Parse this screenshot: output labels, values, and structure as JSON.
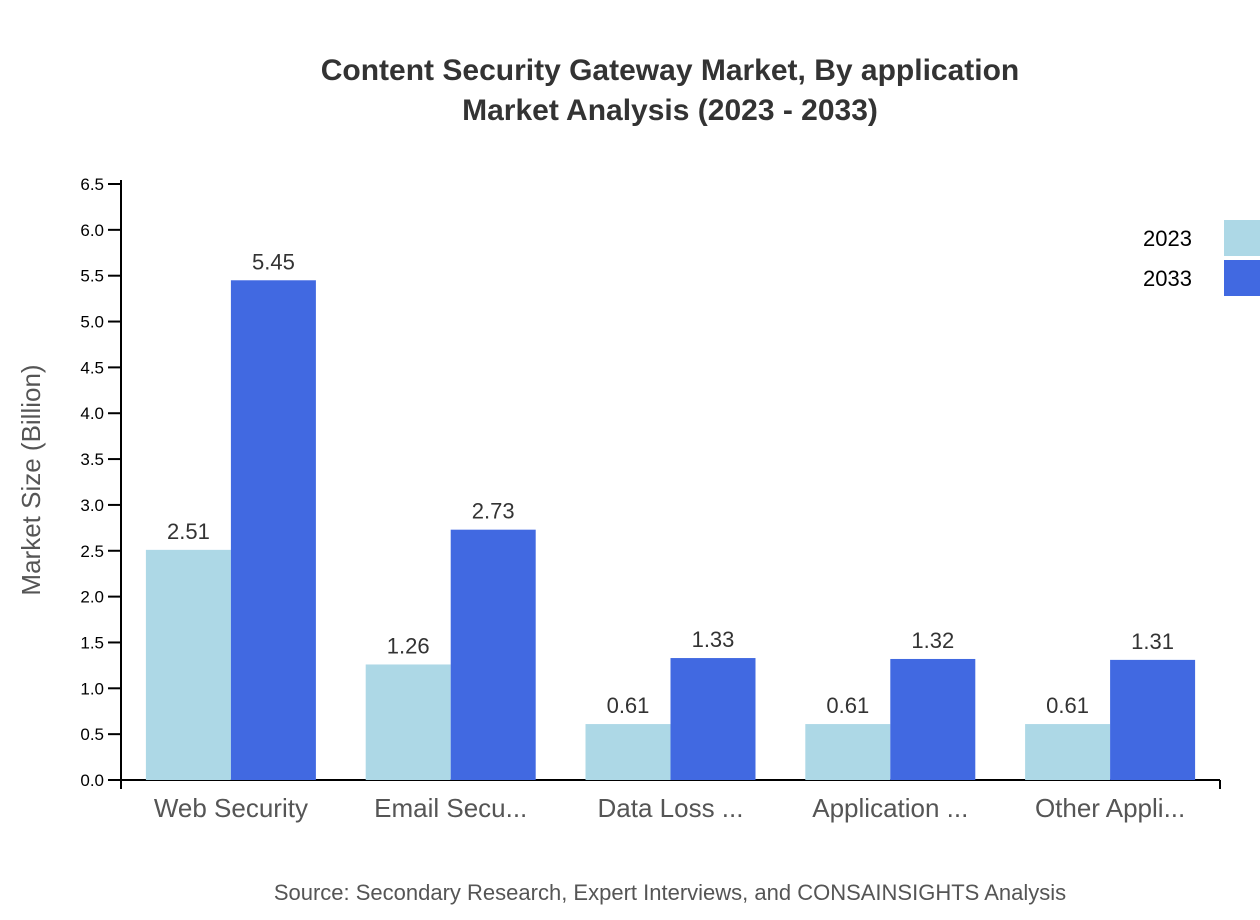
{
  "chart_data": {
    "type": "bar",
    "title": "Content Security Gateway Market, By application",
    "subtitle": "Market Analysis (2023 - 2033)",
    "xlabel": "",
    "ylabel": "Market Size (Billion)",
    "ylim": [
      0,
      6.5
    ],
    "yticks": [
      "0.0",
      "0.5",
      "1.0",
      "1.5",
      "2.0",
      "2.5",
      "3.0",
      "3.5",
      "4.0",
      "4.5",
      "5.0",
      "5.5",
      "6.0",
      "6.5"
    ],
    "categories": [
      "Web Security",
      "Email Secu...",
      "Data Loss ...",
      "Application ...",
      "Other Appli..."
    ],
    "series": [
      {
        "name": "2023",
        "color": "#add8e6",
        "values": [
          2.51,
          1.26,
          0.61,
          0.61,
          0.61
        ]
      },
      {
        "name": "2033",
        "color": "#4169e1",
        "values": [
          5.45,
          2.73,
          1.33,
          1.32,
          1.31
        ]
      }
    ],
    "grid": false,
    "legend_position": "top-right",
    "source": "Source: Secondary Research, Expert Interviews, and CONSAINSIGHTS Analysis"
  }
}
